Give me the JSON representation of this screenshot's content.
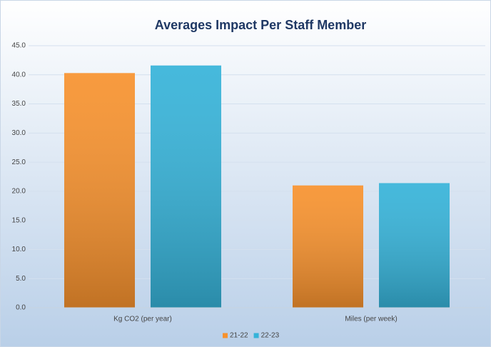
{
  "chart_data": {
    "type": "bar",
    "title": "Averages Impact Per Staff Member",
    "categories": [
      "Kg CO2 (per year)",
      "Miles (per week)"
    ],
    "series": [
      {
        "name": "21-22",
        "color": "#f7922e",
        "values": [
          40.3,
          21.0
        ]
      },
      {
        "name": "22-23",
        "color": "#36b3d9",
        "values": [
          41.6,
          21.4
        ]
      }
    ],
    "ylim": [
      0,
      45
    ],
    "yticks": [
      {
        "value": 0,
        "label": "0.0"
      },
      {
        "value": 5,
        "label": "5.0"
      },
      {
        "value": 10,
        "label": "10.0"
      },
      {
        "value": 15,
        "label": "15.0"
      },
      {
        "value": 20,
        "label": "20.0"
      },
      {
        "value": 25,
        "label": "25.0"
      },
      {
        "value": 30,
        "label": "30.0"
      },
      {
        "value": 35,
        "label": "35.0"
      },
      {
        "value": 40,
        "label": "40.0"
      },
      {
        "value": 45,
        "label": "45.0"
      }
    ],
    "grid": true,
    "legend": "bottom"
  }
}
